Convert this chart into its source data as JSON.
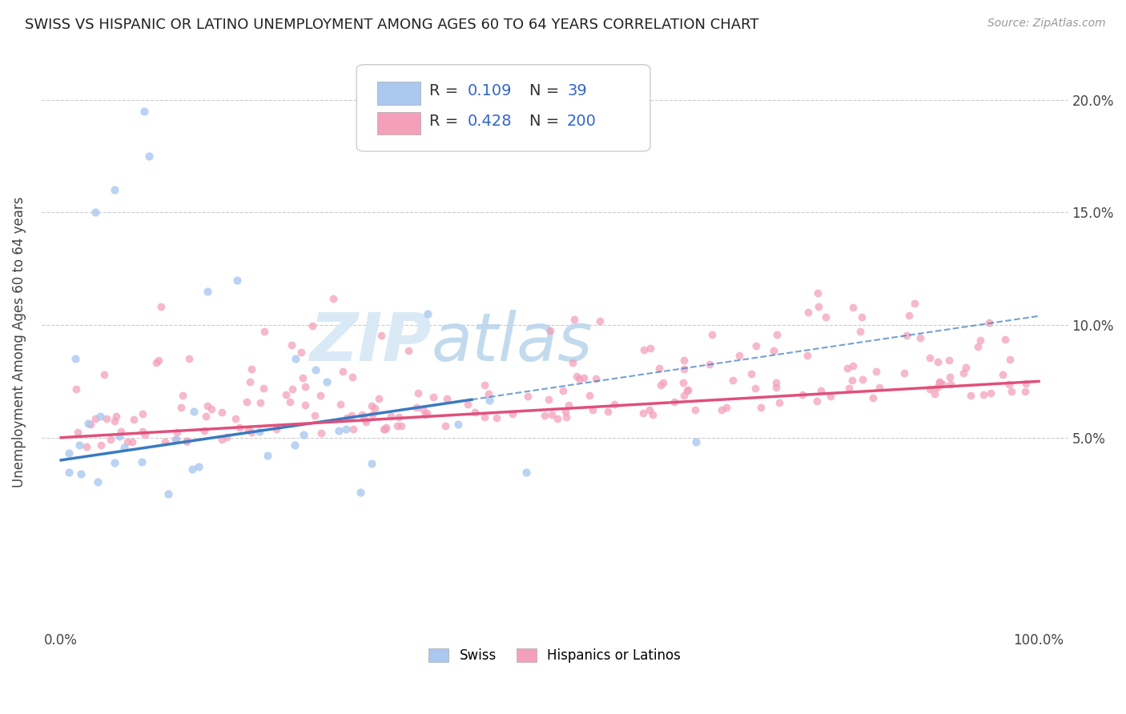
{
  "title": "SWISS VS HISPANIC OR LATINO UNEMPLOYMENT AMONG AGES 60 TO 64 YEARS CORRELATION CHART",
  "source": "Source: ZipAtlas.com",
  "ylabel": "Unemployment Among Ages 60 to 64 years",
  "swiss_R": 0.109,
  "swiss_N": 39,
  "hispanic_R": 0.428,
  "hispanic_N": 200,
  "swiss_color": "#aac8f0",
  "hispanic_color": "#f4a0ba",
  "swiss_line_color": "#3a7abf",
  "hispanic_line_color": "#e0507a",
  "legend_label_swiss": "Swiss",
  "legend_label_hispanic": "Hispanics or Latinos",
  "watermark_zip": "ZIP",
  "watermark_atlas": "atlas",
  "zip_color": "#c8ddf0",
  "atlas_color": "#b0cce8"
}
